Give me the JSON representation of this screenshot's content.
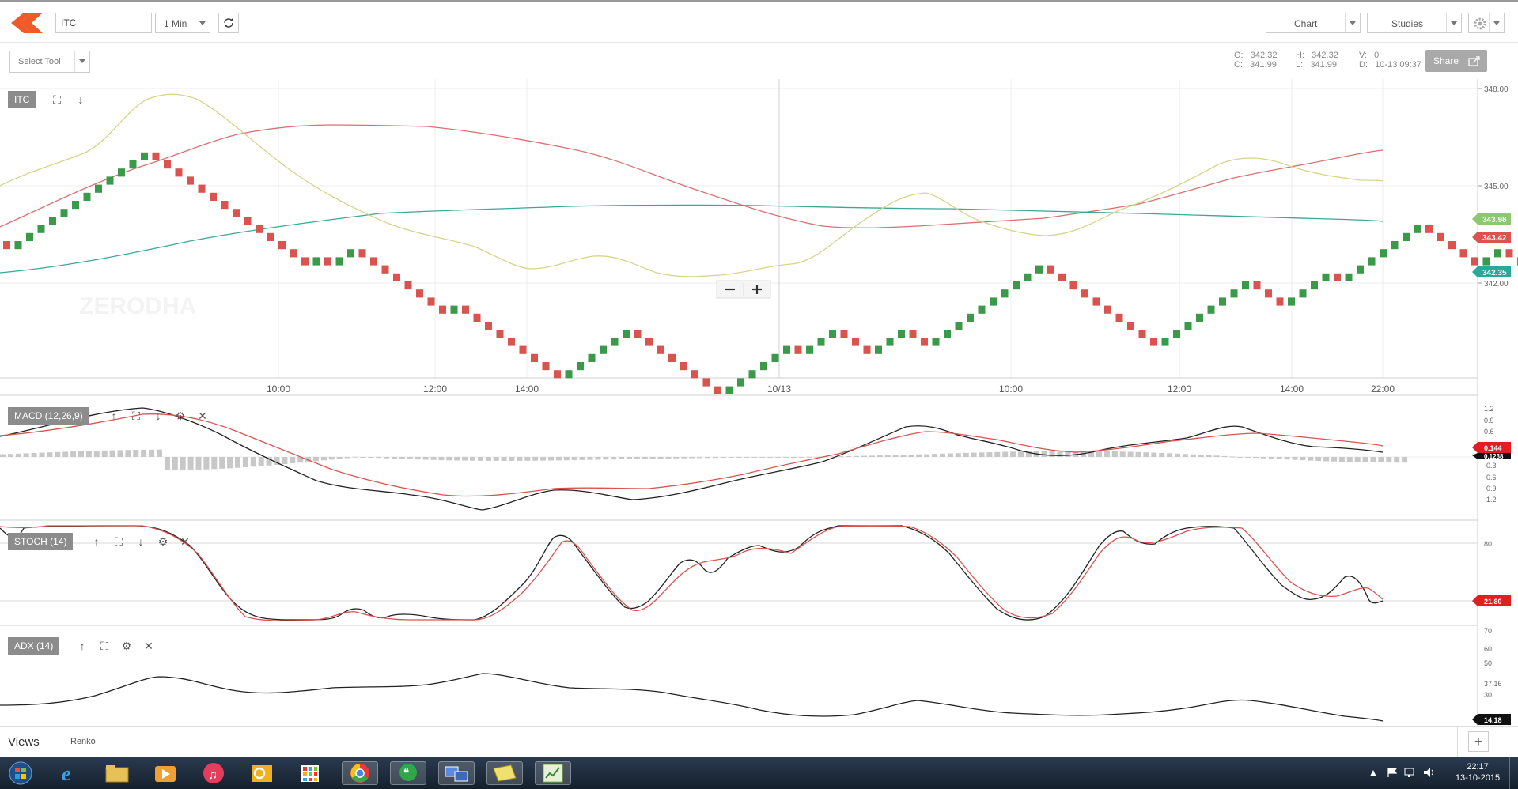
{
  "header": {
    "symbol_value": "ITC",
    "interval": "1 Min",
    "chart_menu": "Chart",
    "studies_menu": "Studies"
  },
  "toolbar": {
    "select_tool": "Select Tool",
    "share": "Share",
    "ohlc": {
      "o_label": "O:",
      "o_value": "342.32",
      "c_label": "C:",
      "c_value": "341.99",
      "h_label": "H:",
      "h_value": "342.32",
      "l_label": "L:",
      "l_value": "341.99",
      "v_label": "V:",
      "v_value": "0",
      "d_label": "D:",
      "d_value": "10-13 09:37"
    }
  },
  "panels": {
    "main": {
      "label": "ITC",
      "watermark": "ZERODHA"
    },
    "macd": {
      "label": "MACD (12,26,9)"
    },
    "stoch": {
      "label": "STOCH (14)"
    },
    "adx": {
      "label": "ADX (14)"
    }
  },
  "price_axis": {
    "ticks": [
      "348.00",
      "345.00",
      "342.00"
    ],
    "badge_green": "343.98",
    "badge_red": "343.42",
    "badge_teal": "342.35"
  },
  "time_axis": [
    "10:00",
    "12:00",
    "14:00",
    "10/13",
    "10:00",
    "12:00",
    "14:00",
    "22:00"
  ],
  "macd_axis": {
    "ticks": [
      "1.2",
      "0.9",
      "0.6",
      "0.3",
      "-0.3",
      "-0.6",
      "-0.9",
      "-1.2"
    ],
    "badge_red": "0.144",
    "badge_black": "0.1238"
  },
  "stoch_axis": {
    "ticks": [
      "80"
    ],
    "badge_red": "21.80"
  },
  "adx_axis": {
    "ticks": [
      "70",
      "60",
      "50",
      "37.16",
      "30"
    ],
    "badge_black": "14.18"
  },
  "footer": {
    "views": "Views",
    "tab": "Renko",
    "add": "+"
  },
  "taskbar": {
    "time": "22:17",
    "date": "13-10-2015",
    "apps": [
      "start-orb",
      "internet-explorer",
      "file-explorer",
      "media-player",
      "itunes",
      "outlook",
      "app-grid",
      "chrome",
      "hangouts",
      "network-tool",
      "folder",
      "chart-app"
    ]
  },
  "colors": {
    "brick_up": "#3a9a4a",
    "brick_down": "#d9534f",
    "ema_fast": "#d4d48a",
    "ema_mid": "#d9534f",
    "ema_slow": "#2aa89a",
    "brand": "#f05a28"
  }
}
